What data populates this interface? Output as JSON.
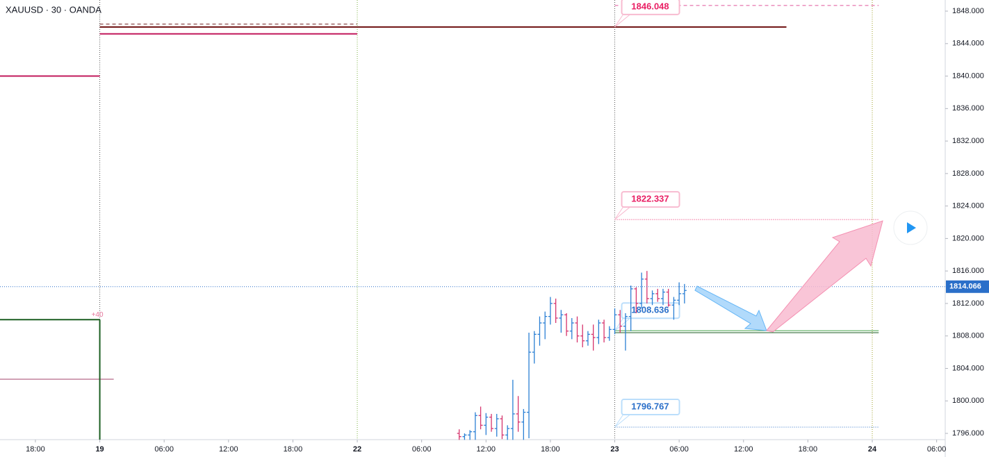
{
  "chart_data": {
    "type": "ohlc",
    "title": "XAUUSD · 30 · OANDA",
    "annotation": "+40",
    "up_color": "#2a7fd4",
    "down_color": "#d6336c",
    "xlim": [
      -3.3,
      84.8
    ],
    "ylim": [
      1795.23,
      1849.37
    ],
    "xticks": [
      {
        "value": 0,
        "label": "18:00"
      },
      {
        "value": 6,
        "label": "19"
      },
      {
        "value": 12,
        "label": "06:00"
      },
      {
        "value": 18,
        "label": "12:00"
      },
      {
        "value": 24,
        "label": "18:00"
      },
      {
        "value": 30,
        "label": "22"
      },
      {
        "value": 36,
        "label": "06:00"
      },
      {
        "value": 42,
        "label": "12:00"
      },
      {
        "value": 48,
        "label": "18:00"
      },
      {
        "value": 54,
        "label": "23"
      },
      {
        "value": 60,
        "label": "06:00"
      },
      {
        "value": 66,
        "label": "12:00"
      },
      {
        "value": 72,
        "label": "18:00"
      },
      {
        "value": 78,
        "label": "24"
      },
      {
        "value": 84,
        "label": "06:00"
      }
    ],
    "yticks": [
      {
        "value": 1848,
        "label": "1848.000"
      },
      {
        "value": 1844,
        "label": "1844.000"
      },
      {
        "value": 1840,
        "label": "1840.000"
      },
      {
        "value": 1836,
        "label": "1836.000"
      },
      {
        "value": 1832,
        "label": "1832.000"
      },
      {
        "value": 1828,
        "label": "1828.000"
      },
      {
        "value": 1824,
        "label": "1824.000"
      },
      {
        "value": 1820,
        "label": "1820.000"
      },
      {
        "value": 1816,
        "label": "1816.000"
      },
      {
        "value": 1812,
        "label": "1812.000"
      },
      {
        "value": 1808,
        "label": "1808.000"
      },
      {
        "value": 1804,
        "label": "1804.000"
      },
      {
        "value": 1800,
        "label": "1800.000"
      },
      {
        "value": 1796,
        "label": "1796.000"
      }
    ],
    "vlines": [
      {
        "x": 6,
        "color": "#555555"
      },
      {
        "x": 30,
        "color": "#7cb342"
      },
      {
        "x": 54,
        "color": "#555555"
      },
      {
        "x": 78,
        "color": "#9e9d24"
      }
    ],
    "current_price": 1814.066,
    "current_color": "#2a6fc9",
    "levels": [
      {
        "value": 1840,
        "from": -3.3,
        "to": 6,
        "color": "#c2185b",
        "width": 2,
        "style": "solid"
      },
      {
        "value": 1845.2,
        "from": 6,
        "to": 30,
        "color": "#c2185b",
        "width": 2,
        "style": "solid"
      },
      {
        "value": 1846.4,
        "from": 6,
        "to": 30,
        "color": "#6d1a1a",
        "width": 1,
        "style": "dashed"
      },
      {
        "value": 1846.048,
        "from": 6,
        "to": 70,
        "color": "#6d0f0f",
        "width": 2,
        "style": "solid"
      },
      {
        "value": 1848.7,
        "from": 54,
        "to": 78.6,
        "color": "#e0559a",
        "width": 1,
        "style": "dashed"
      },
      {
        "value": 1810,
        "from": -3.3,
        "to": 6,
        "color": "#1b5e20",
        "width": 2,
        "style": "solid"
      },
      {
        "value": 1802.67,
        "from": -3.3,
        "to": 7.3,
        "color": "#a0406a",
        "width": 1,
        "style": "solid"
      },
      {
        "value": 1808.65,
        "from": 54,
        "to": 78.6,
        "color": "#43a047",
        "width": 1,
        "style": "solid"
      },
      {
        "value": 1808.4,
        "from": 54,
        "to": 78.6,
        "color": "#1b5e20",
        "width": 1,
        "style": "solid"
      }
    ],
    "labeled_levels": [
      {
        "value": 1846.048,
        "from": 54,
        "to": 54,
        "color": "#e91e63",
        "box": "#f8bbd0",
        "style": "none"
      },
      {
        "value": 1822.337,
        "from": 54,
        "to": 78.6,
        "color": "#e91e63",
        "box": "#f8bbd0",
        "style": "dotted"
      },
      {
        "value": 1808.636,
        "from": 54,
        "to": 54,
        "color": "#2a6fc9",
        "box": "#bbdefb",
        "style": "none"
      },
      {
        "value": 1796.767,
        "from": 54,
        "to": 78.6,
        "color": "#2a6fc9",
        "box": "#bbdefb",
        "style": "dotted"
      }
    ],
    "bars": {
      "x": [
        39.5,
        40,
        40.5,
        41,
        41.5,
        42,
        42.5,
        43,
        43.5,
        44,
        44.5,
        45,
        45.5,
        46,
        46.5,
        47,
        47.5,
        48,
        48.5,
        49,
        49.5,
        50,
        50.5,
        51,
        51.5,
        52,
        52.5,
        53,
        53.5,
        54,
        54.5,
        55,
        55.5,
        56,
        56.5,
        57,
        57.5,
        58,
        58.5,
        59,
        59.5,
        60,
        60.5
      ],
      "open": [
        1796.0,
        1795.6,
        1795.8,
        1796.2,
        1798.2,
        1797.0,
        1798.0,
        1796.6,
        1797.8,
        1795.8,
        1796.6,
        1798.4,
        1797.4,
        1798.6,
        1806.0,
        1808.2,
        1809.6,
        1810.4,
        1812.0,
        1810.2,
        1810.6,
        1808.6,
        1809.6,
        1808.0,
        1807.4,
        1808.2,
        1807.8,
        1809.6,
        1807.8,
        1808.8,
        1810.6,
        1809.2,
        1810.4,
        1813.8,
        1812.0,
        1815.0,
        1812.6,
        1813.2,
        1812.6,
        1813.4,
        1811.8,
        1812.4,
        1813.2
      ],
      "high": [
        1796.5,
        1796.0,
        1796.4,
        1798.6,
        1799.3,
        1798.5,
        1798.4,
        1798.4,
        1798.2,
        1797.0,
        1802.6,
        1800.6,
        1799.0,
        1808.4,
        1808.6,
        1810.4,
        1811.0,
        1812.8,
        1812.6,
        1811.2,
        1810.8,
        1810.2,
        1810.4,
        1809.4,
        1808.6,
        1809.4,
        1810.0,
        1810.0,
        1809.2,
        1811.4,
        1811.2,
        1810.8,
        1814.2,
        1814.0,
        1815.8,
        1816.0,
        1813.6,
        1813.8,
        1813.8,
        1813.8,
        1812.8,
        1814.6,
        1814.4
      ],
      "low": [
        1795.2,
        1795.2,
        1795.2,
        1795.2,
        1796.5,
        1795.8,
        1796.2,
        1795.6,
        1795.3,
        1795.2,
        1795.2,
        1796.2,
        1795.2,
        1795.4,
        1804.6,
        1806.8,
        1807.6,
        1809.4,
        1809.6,
        1808.4,
        1808.0,
        1807.6,
        1807.2,
        1806.6,
        1806.8,
        1806.2,
        1807.0,
        1807.2,
        1807.4,
        1808.2,
        1808.4,
        1806.2,
        1808.6,
        1810.8,
        1811.4,
        1812.0,
        1811.8,
        1812.2,
        1811.8,
        1811.6,
        1810.0,
        1811.8,
        1812.0
      ],
      "close": [
        1795.6,
        1795.8,
        1796.2,
        1798.2,
        1797.0,
        1798.0,
        1796.6,
        1797.8,
        1795.8,
        1796.6,
        1798.4,
        1797.4,
        1798.6,
        1806.0,
        1808.2,
        1809.6,
        1810.4,
        1812.0,
        1810.2,
        1810.6,
        1808.6,
        1809.6,
        1808.0,
        1807.4,
        1808.2,
        1807.8,
        1809.6,
        1807.8,
        1808.8,
        1810.6,
        1809.2,
        1810.4,
        1813.8,
        1812.0,
        1815.0,
        1812.6,
        1813.2,
        1812.6,
        1813.4,
        1811.8,
        1812.4,
        1813.2,
        1813.6
      ]
    }
  }
}
